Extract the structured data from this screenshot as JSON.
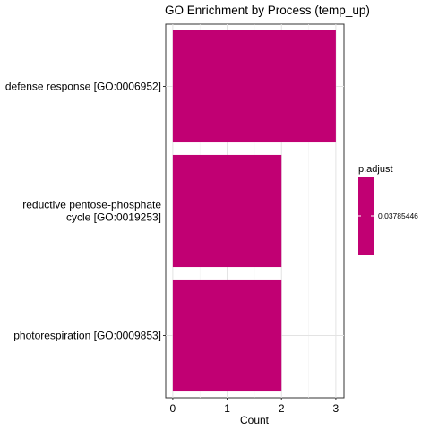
{
  "chart_data": {
    "type": "bar",
    "orientation": "horizontal",
    "title": "GO Enrichment by Process (temp_up)",
    "xlabel": "Count",
    "ylabel": "",
    "categories": [
      [
        "defense response [GO:0006952]"
      ],
      [
        "reductive pentose-phosphate",
        "cycle [GO:0019253]"
      ],
      [
        "photorespiration [GO:0009853]"
      ]
    ],
    "values": [
      3,
      2,
      2
    ],
    "xlim": [
      -0.13,
      3.15
    ],
    "xticks": [
      "0",
      "1",
      "2",
      "3"
    ],
    "grid": true,
    "bar_color": "#c10073",
    "legend": {
      "title": "p.adjust",
      "labels": [
        "0.03785446"
      ],
      "placement": "right"
    }
  }
}
